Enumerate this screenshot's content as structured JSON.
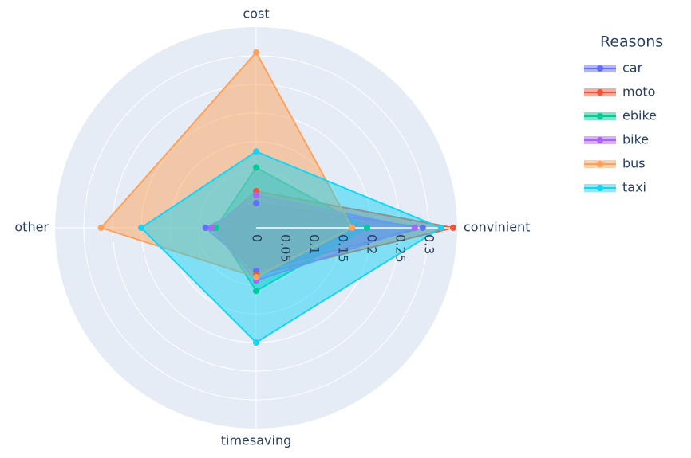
{
  "chart_data": {
    "type": "radar",
    "categories": [
      "convinient",
      "cost",
      "other",
      "timesaving"
    ],
    "legend_title": "Reasons",
    "rlim": [
      0,
      0.35
    ],
    "rticks": [
      0,
      0.05,
      0.1,
      0.15,
      0.2,
      0.25,
      0.3
    ],
    "series": [
      {
        "name": "car",
        "color": "#636efa",
        "values": [
          0.29,
          0.043,
          0.088,
          0.075
        ]
      },
      {
        "name": "moto",
        "color": "#ef553b",
        "values": [
          0.343,
          0.064,
          0.074,
          0.082
        ]
      },
      {
        "name": "ebike",
        "color": "#00cc96",
        "values": [
          0.193,
          0.105,
          0.07,
          0.11
        ]
      },
      {
        "name": "bike",
        "color": "#ab63fa",
        "values": [
          0.276,
          0.057,
          0.078,
          0.092
        ]
      },
      {
        "name": "bus",
        "color": "#ffa15a",
        "values": [
          0.167,
          0.306,
          0.27,
          0.086
        ]
      },
      {
        "name": "taxi",
        "color": "#19d3f3",
        "values": [
          0.322,
          0.133,
          0.2,
          0.2
        ]
      }
    ]
  }
}
